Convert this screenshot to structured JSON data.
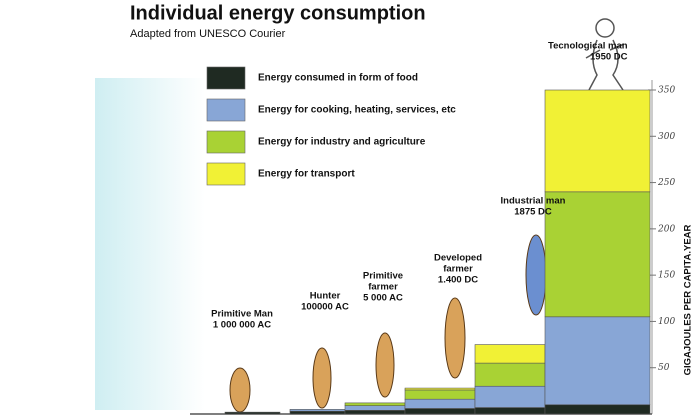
{
  "chart_data": {
    "type": "bar",
    "stacked": true,
    "title": "Individual energy consumption",
    "subtitle": "Adapted from UNESCO Courier",
    "y_axis_label": "GIGAJOULES PER CAPITA.YEAR",
    "categories": [
      [
        "Primitive Man",
        "1 000 000 AC"
      ],
      [
        "Hunter",
        "100000 AC"
      ],
      [
        "Primitive",
        "farmer",
        "5 000 AC"
      ],
      [
        "Developed",
        "farmer",
        "1.400 DC"
      ],
      [
        "Industrial man",
        "1875 DC"
      ],
      [
        "Tecnological man",
        "1950 DC"
      ]
    ],
    "series": [
      {
        "name": "Energy  consumed in form of food",
        "color": "#1f2a22",
        "values": [
          2,
          3,
          4,
          6,
          7,
          10
        ]
      },
      {
        "name": "Energy for cooking, heating, services, etc",
        "color": "#88a6d6",
        "values": [
          0,
          2,
          5,
          10,
          23,
          95
        ]
      },
      {
        "name": "Energy for industry and agriculture",
        "color": "#a9d234",
        "values": [
          0,
          0,
          3,
          10,
          25,
          135
        ]
      },
      {
        "name": "Energy for transport",
        "color": "#f1f135",
        "values": [
          0,
          0,
          0,
          2,
          20,
          110
        ]
      }
    ],
    "ylim": [
      0,
      350
    ],
    "yticks": [
      50,
      100,
      150,
      200,
      250,
      300,
      350
    ],
    "legend": "upper-left"
  }
}
